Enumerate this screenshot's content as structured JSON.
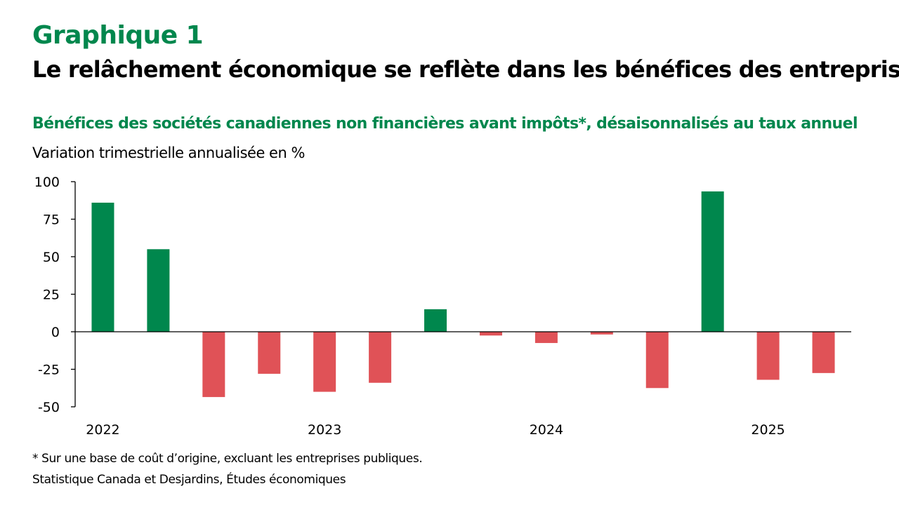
{
  "header": {
    "chart_number": "Graphique 1",
    "title": "Le relâchement économique se reflète dans les bénéfices des entreprises",
    "subtitle": "Bénéfices des sociétés canadiennes non financières avant impôts*, désaisonnalisés au taux annuel",
    "unit_label": "Variation trimestrielle annualisée en %"
  },
  "footer": {
    "note": "* Sur une base de coût d’origine, excluant les entreprises publiques.",
    "source": "Statistique Canada et Desjardins, Études économiques"
  },
  "colors": {
    "positive": "#00874D",
    "negative": "#E05257",
    "axis": "#000000",
    "title_green": "#00874D"
  },
  "chart_data": {
    "type": "bar",
    "title": "Bénéfices des sociétés canadiennes non financières avant impôts*, désaisonnalisés au taux annuel",
    "ylabel": "Variation trimestrielle annualisée en %",
    "xlabel": "",
    "categories": [
      "2022T1",
      "2022T2",
      "2022T3",
      "2022T4",
      "2023T1",
      "2023T2",
      "2023T3",
      "2023T4",
      "2024T1",
      "2024T2",
      "2024T3",
      "2024T4",
      "2025T1",
      "2025T2"
    ],
    "values": [
      86,
      55,
      -43.5,
      -28,
      -40,
      -34,
      15,
      -2.5,
      -7.5,
      -1.8,
      -37.5,
      93.5,
      -32,
      -27.5
    ],
    "x_tick_labels": [
      {
        "label": "2022",
        "category_index": 0
      },
      {
        "label": "2023",
        "category_index": 4
      },
      {
        "label": "2024",
        "category_index": 8
      },
      {
        "label": "2025",
        "category_index": 12
      }
    ],
    "y_ticks": [
      100,
      75,
      50,
      25,
      0,
      -25,
      -50
    ],
    "ylim": [
      -50,
      100
    ],
    "grid": false,
    "legend": "none"
  }
}
